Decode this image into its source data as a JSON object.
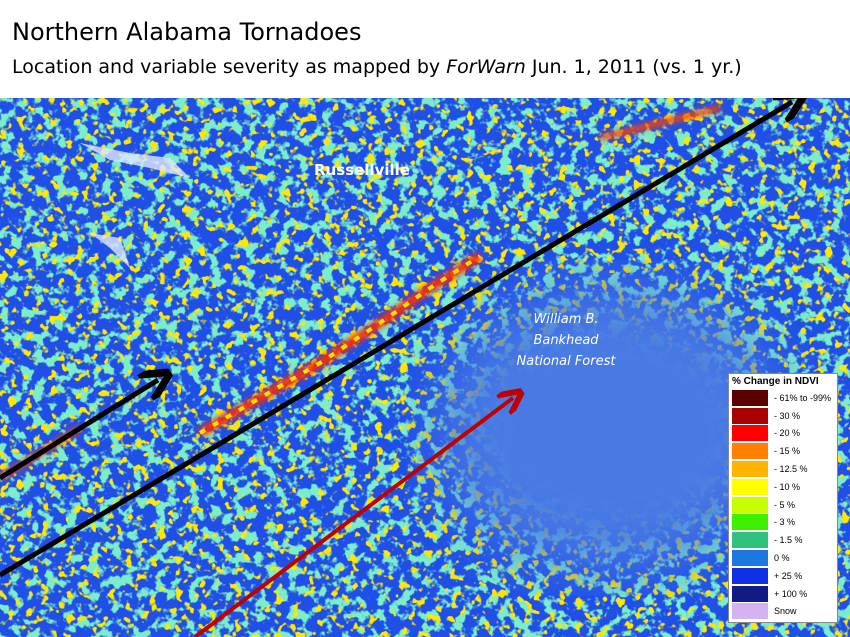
{
  "header": {
    "title": "Northern Alabama Tornadoes",
    "subtitle": {
      "before": "Location and variable severity as mapped by ",
      "emphasis": "ForWarn",
      "after": " Jun. 1, 2011 (vs. 1 yr.)"
    }
  },
  "map": {
    "labels": [
      {
        "text": "Russellville"
      },
      {
        "lines": [
          "William B.",
          "Bankhead",
          "National Forest"
        ]
      }
    ]
  },
  "legend": {
    "title": "% Change in NDVI",
    "items": [
      {
        "label": "- 61% to -99%",
        "color": "#5c0000"
      },
      {
        "label": "- 30 %",
        "color": "#a80000"
      },
      {
        "label": "- 20 %",
        "color": "#ff0000"
      },
      {
        "label": "- 15 %",
        "color": "#ff7f00"
      },
      {
        "label": "- 12.5 %",
        "color": "#ffb400"
      },
      {
        "label": "- 10 %",
        "color": "#ffff00"
      },
      {
        "label": "- 5 %",
        "color": "#c8ff00"
      },
      {
        "label": "- 3 %",
        "color": "#3cf000"
      },
      {
        "label": "- 1.5 %",
        "color": "#30c080"
      },
      {
        "label": "0 %",
        "color": "#1c78e0"
      },
      {
        "label": "+ 25 %",
        "color": "#1030e6"
      },
      {
        "label": "+ 100 %",
        "color": "#101c84"
      },
      {
        "label": "Snow",
        "color": "#d4b4f0"
      }
    ]
  }
}
